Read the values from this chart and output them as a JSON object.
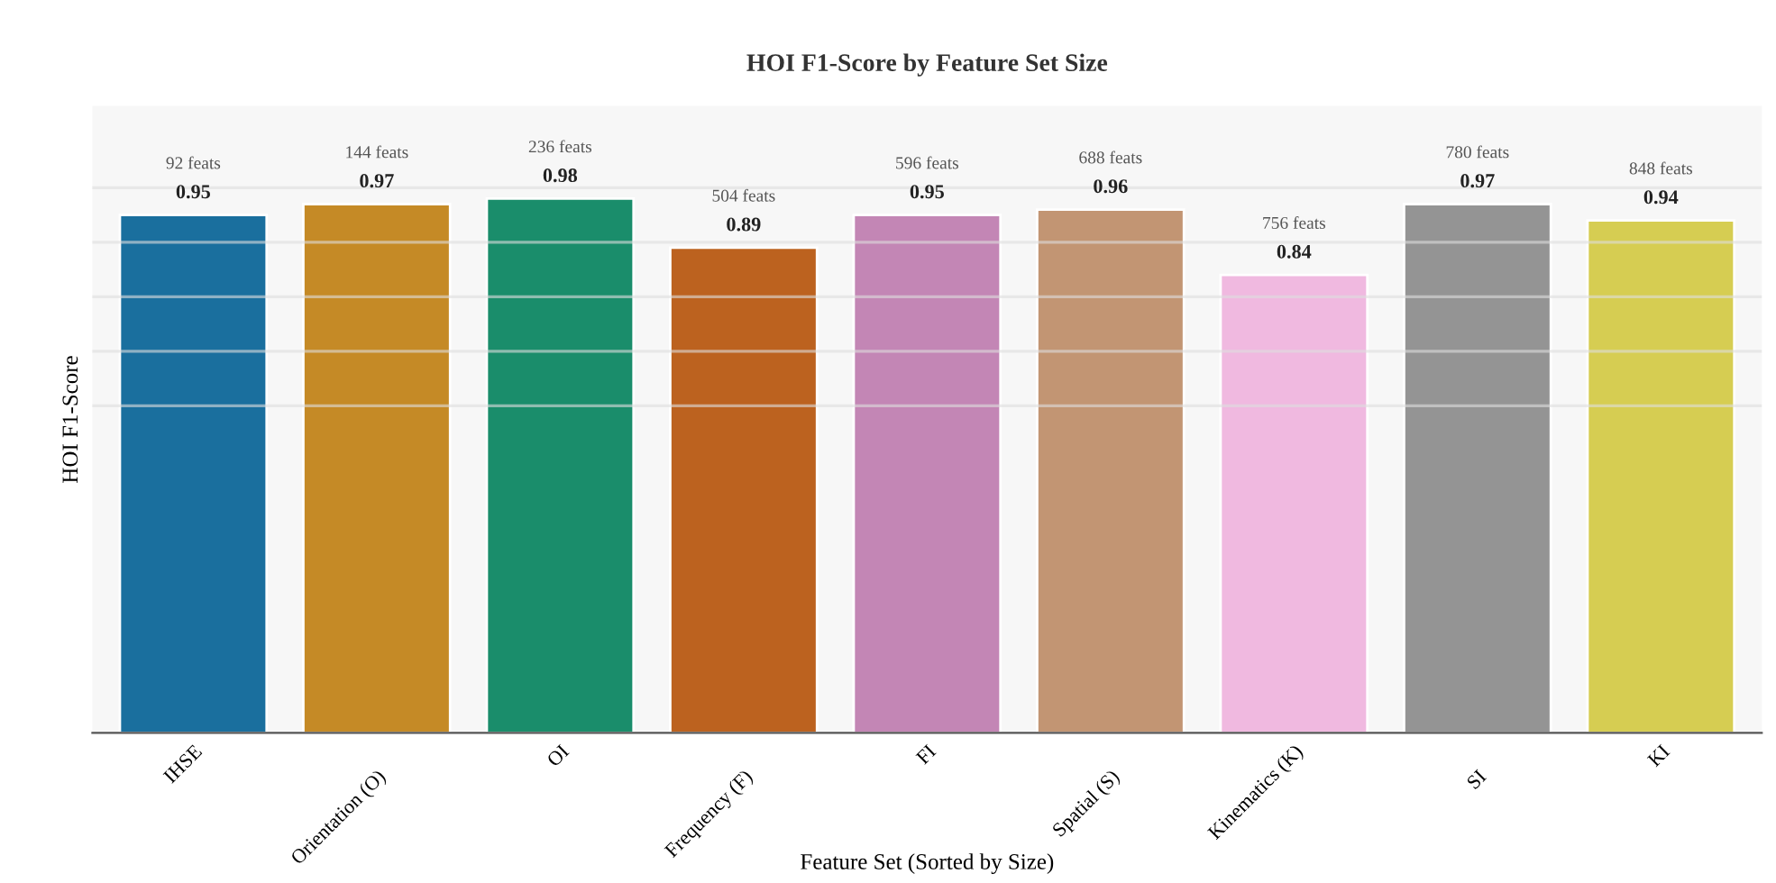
{
  "chart_data": {
    "type": "bar",
    "title": "HOI F1-Score by Feature Set Size",
    "xlabel": "Feature Set (Sorted by Size)",
    "ylabel": "HOI F1-Score",
    "categories": [
      "IHSE",
      "Orientation (O)",
      "OI",
      "Frequency (F)",
      "FI",
      "Spatial (S)",
      "Kinematics (K)",
      "SI",
      "KI"
    ],
    "values": [
      0.95,
      0.97,
      0.98,
      0.89,
      0.95,
      0.96,
      0.84,
      0.97,
      0.94
    ],
    "colors": [
      "#1a6f9e",
      "#c58a26",
      "#1a8d6b",
      "#bc621f",
      "#c386b5",
      "#c29573",
      "#f0b9e0",
      "#949494",
      "#d6cd52"
    ],
    "data_labels": true,
    "annotations": [
      {
        "text": "92 feats",
        "x": "IHSE",
        "y": 0.95
      },
      {
        "text": "144 feats",
        "x": "Orientation (O)",
        "y": 0.97
      },
      {
        "text": "236 feats",
        "x": "OI",
        "y": 0.98
      },
      {
        "text": "504 feats",
        "x": "Frequency (F)",
        "y": 0.89
      },
      {
        "text": "596 feats",
        "x": "FI",
        "y": 0.95
      },
      {
        "text": "688 feats",
        "x": "Spatial (S)",
        "y": 0.96
      },
      {
        "text": "756 feats",
        "x": "Kinematics (K)",
        "y": 0.84
      },
      {
        "text": "780 feats",
        "x": "SI",
        "y": 0.97
      },
      {
        "text": "848 feats",
        "x": "KI",
        "y": 0.94
      }
    ],
    "ylim": [
      0,
      1.15
    ],
    "yticks": [
      {
        "value": 0.6,
        "label": null
      },
      {
        "value": 0.7,
        "label": null
      },
      {
        "value": 0.8,
        "label": null
      },
      {
        "value": 0.9,
        "label": null
      },
      {
        "value": 1.0,
        "label": null
      }
    ],
    "tick_labels": "x",
    "grid": "y",
    "legend": false
  }
}
